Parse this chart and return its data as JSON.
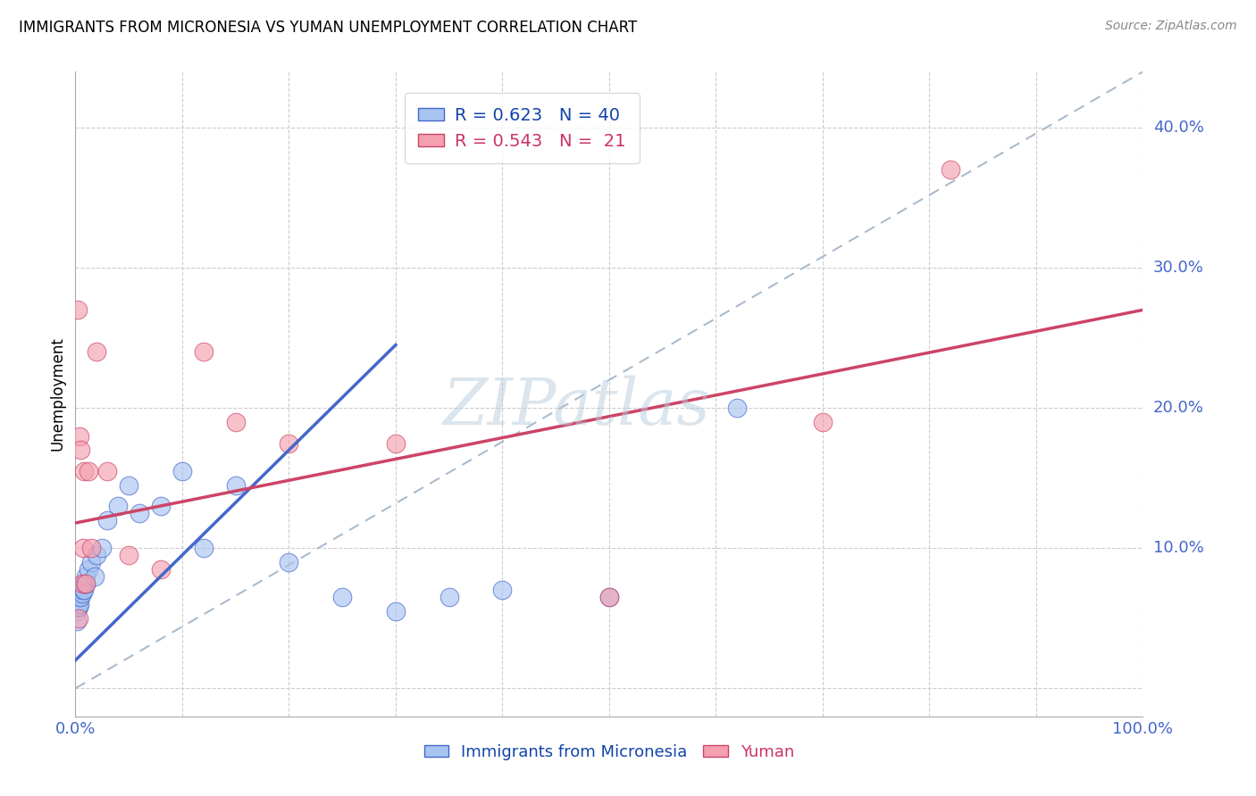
{
  "title": "IMMIGRANTS FROM MICRONESIA VS YUMAN UNEMPLOYMENT CORRELATION CHART",
  "source": "Source: ZipAtlas.com",
  "ylabel_label": "Unemployment",
  "xlim": [
    0.0,
    1.0
  ],
  "ylim": [
    -0.02,
    0.44
  ],
  "blue_R": 0.623,
  "blue_N": 40,
  "pink_R": 0.543,
  "pink_N": 21,
  "legend_label_blue": "Immigrants from Micronesia",
  "legend_label_pink": "Yuman",
  "blue_scatter_color": "#A8C4F0",
  "pink_scatter_color": "#F4A0B0",
  "blue_line_color": "#4466CC",
  "pink_line_color": "#CC4466",
  "diag_line_color": "#AABBCC",
  "watermark_color": "#B8CCDD",
  "watermark": "ZIPatlas",
  "tick_label_color": "#4466CC",
  "blue_scatter_x": [
    0.001,
    0.001,
    0.002,
    0.002,
    0.002,
    0.003,
    0.003,
    0.003,
    0.004,
    0.004,
    0.005,
    0.005,
    0.006,
    0.006,
    0.007,
    0.008,
    0.008,
    0.009,
    0.01,
    0.01,
    0.012,
    0.015,
    0.018,
    0.02,
    0.025,
    0.03,
    0.04,
    0.05,
    0.06,
    0.08,
    0.1,
    0.12,
    0.15,
    0.2,
    0.25,
    0.3,
    0.35,
    0.4,
    0.5,
    0.62
  ],
  "blue_scatter_y": [
    0.055,
    0.048,
    0.06,
    0.065,
    0.058,
    0.062,
    0.058,
    0.065,
    0.06,
    0.068,
    0.065,
    0.07,
    0.068,
    0.072,
    0.07,
    0.07,
    0.075,
    0.075,
    0.075,
    0.08,
    0.085,
    0.09,
    0.08,
    0.095,
    0.1,
    0.12,
    0.13,
    0.145,
    0.125,
    0.13,
    0.155,
    0.1,
    0.145,
    0.09,
    0.065,
    0.055,
    0.065,
    0.07,
    0.065,
    0.2
  ],
  "pink_scatter_x": [
    0.002,
    0.003,
    0.004,
    0.005,
    0.006,
    0.007,
    0.008,
    0.01,
    0.012,
    0.015,
    0.02,
    0.03,
    0.05,
    0.08,
    0.12,
    0.15,
    0.2,
    0.3,
    0.5,
    0.7,
    0.82
  ],
  "pink_scatter_y": [
    0.27,
    0.05,
    0.18,
    0.17,
    0.075,
    0.1,
    0.155,
    0.075,
    0.155,
    0.1,
    0.24,
    0.155,
    0.095,
    0.085,
    0.24,
    0.19,
    0.175,
    0.175,
    0.065,
    0.19,
    0.37
  ],
  "blue_line_x0": 0.0,
  "blue_line_y0": 0.02,
  "blue_line_x1": 0.3,
  "blue_line_y1": 0.245,
  "pink_line_x0": 0.0,
  "pink_line_y0": 0.118,
  "pink_line_x1": 1.0,
  "pink_line_y1": 0.27
}
